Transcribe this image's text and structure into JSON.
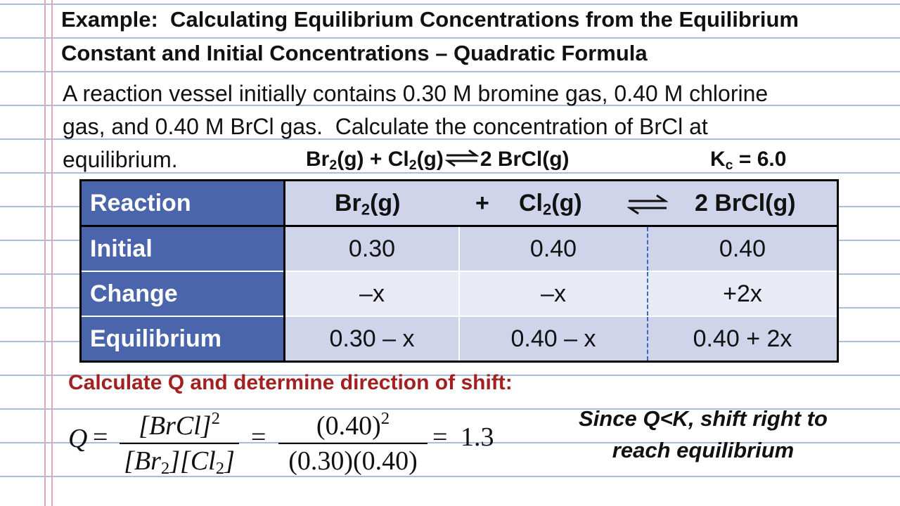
{
  "title_lines": [
    "Example:  Calculating Equilibrium Concentrations from the Equilibrium",
    "Constant and Initial Concentrations – Quadratic Formula"
  ],
  "problem_lines": [
    "A reaction vessel initially contains 0.30 M bromine gas, 0.40 M chlorine",
    "gas, and 0.40 M BrCl gas.  Calculate the concentration of BrCl at",
    "equilibrium."
  ],
  "equation": [
    "Br",
    "2",
    "(g) + Cl",
    "2",
    "(g)",
    "2 BrCl(g)"
  ],
  "kc": [
    "K",
    "c",
    " = 6.0"
  ],
  "table": {
    "header": {
      "label": "Reaction",
      "species": [
        [
          "Br",
          "2",
          "(g)"
        ],
        [
          "Cl",
          "2",
          "(g)"
        ],
        [
          "2 BrCl(g)"
        ]
      ],
      "plus": "+"
    },
    "rows": [
      [
        "Initial",
        "0.30",
        "0.40",
        "0.40"
      ],
      [
        "Change",
        "–x",
        "–x",
        "+2x"
      ],
      [
        "Equilibrium",
        "0.30 – x",
        "0.40 – x",
        "0.40 + 2x"
      ]
    ]
  },
  "q_heading": "Calculate Q and determine direction of shift:",
  "q_formula": {
    "lhs": "Q",
    "equals": "=",
    "num1": [
      "[BrCl]",
      "2"
    ],
    "den1": [
      "[Br",
      "2",
      "][Cl",
      "2",
      "]"
    ],
    "num2": [
      "(0.40)",
      "2"
    ],
    "den2": "(0.30)(0.40)",
    "result": "1.3"
  },
  "conclusion_lines": [
    "Since Q<K, shift right to",
    "reach equilibrium"
  ]
}
